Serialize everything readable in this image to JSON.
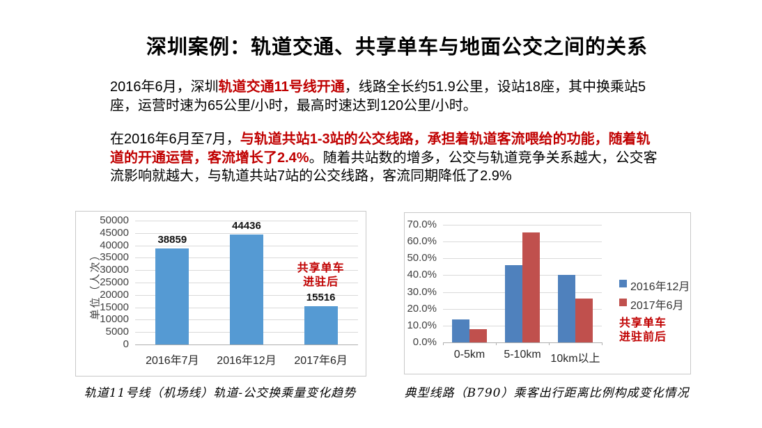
{
  "title": "深圳案例：轨道交通、共享单车与地面公交之间的关系",
  "intro": {
    "lead": "2016年6月，深圳",
    "highlight": "轨道交通11号线开通",
    "rest": "，线路全长约51.9公里，设站18座，其中换乘站5座，运营时速为65公里/小时，最高时速达到120公里/小时。"
  },
  "analysis": {
    "lead": "在2016年6月至7月，",
    "highlight": "与轨道共站1-3站的公交线路，承担着轨道客流喂给的功能，随着轨道的开通运营，客流增长了2.4%",
    "rest": "。随着共站数的增多，公交与轨道竞争关系越大，公交客流影响就越大，与轨道共站7站的公交线路，客流同期降低了2.9%"
  },
  "colors": {
    "highlight_red": "#c00000",
    "left_bar_blue": "#559ad3",
    "right_bar_blue": "#4f81bd",
    "right_bar_red": "#c0504d",
    "grid_gray": "#d9d9d9"
  },
  "chart_data": [
    {
      "type": "bar",
      "caption": "轨道11号线（机场线）轨道-公交换乘量变化趋势",
      "categories": [
        "2016年7月",
        "2016年12月",
        "2017年6月"
      ],
      "values": [
        38859,
        44436,
        15516
      ],
      "data_labels": [
        "38859",
        "44436",
        "15516"
      ],
      "xlabel": "",
      "ylabel": "单位（人次）",
      "ylim": [
        0,
        50000
      ],
      "ytick_step": 5000,
      "grid": true,
      "bar_color": "#559ad3",
      "annotation": {
        "lines": [
          "共享单车",
          "进驻后"
        ],
        "color": "#c00000",
        "anchor_category": "2017年6月"
      }
    },
    {
      "type": "bar",
      "caption": "典型线路（B790）乘客出行距离比例构成变化情况",
      "categories": [
        "0-5km",
        "5-10km",
        "10km以上"
      ],
      "series": [
        {
          "name": "2016年12月",
          "color": "#4f81bd",
          "values": [
            13.5,
            46.0,
            40.0
          ]
        },
        {
          "name": "2017年6月",
          "color": "#c0504d",
          "values": [
            8.0,
            65.5,
            26.0
          ]
        }
      ],
      "xlabel": "",
      "ylabel": "",
      "ylim": [
        0,
        70
      ],
      "ytick_step": 10,
      "ytick_decimals": 1,
      "ytick_suffix": "%",
      "grid": true,
      "legend_position": "right",
      "annotation": {
        "lines": [
          "共享单车",
          "进驻前后"
        ],
        "color": "#c00000"
      }
    }
  ]
}
